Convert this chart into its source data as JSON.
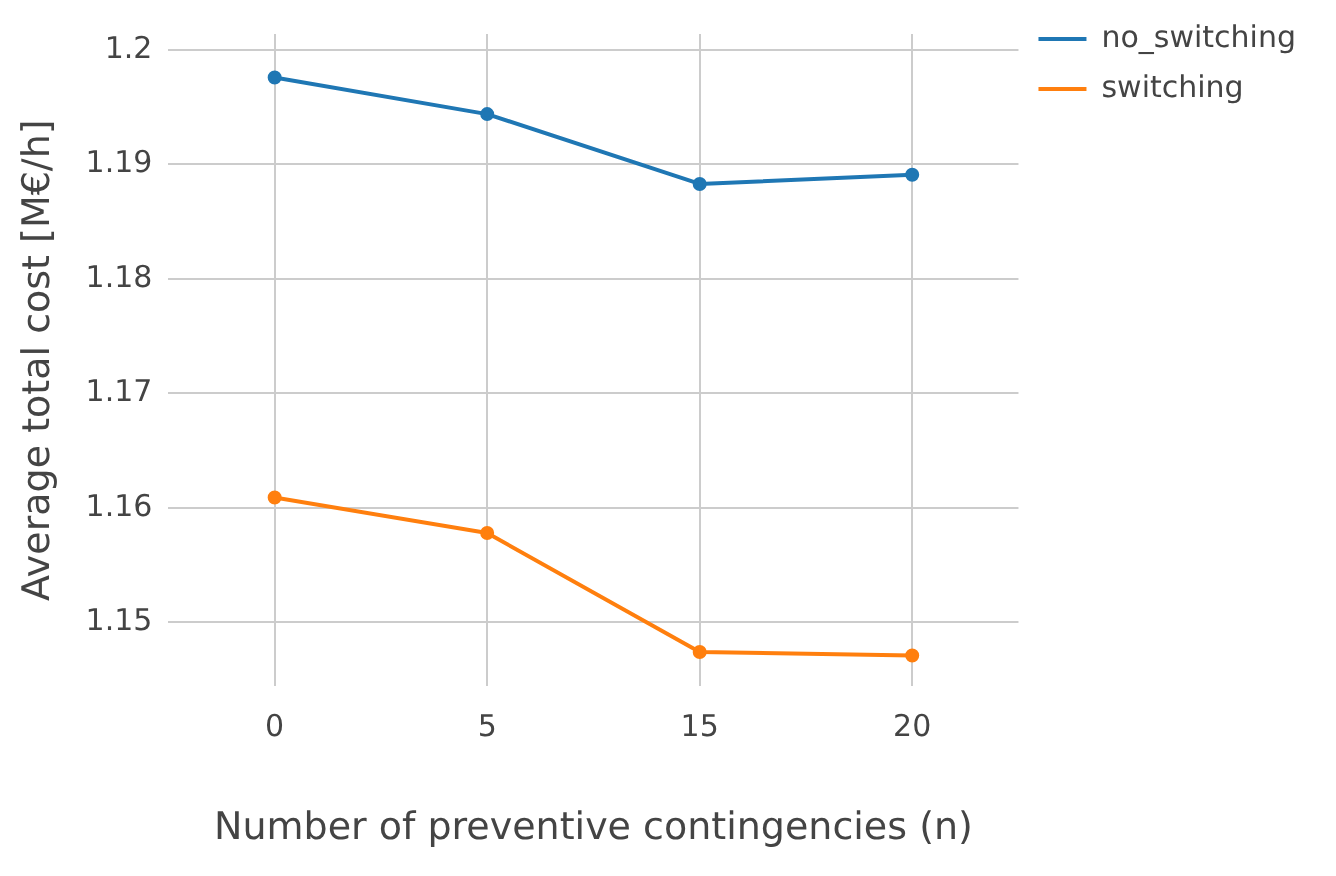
{
  "chart_data": {
    "type": "line",
    "xlabel": "Number of preventive contingencies (n)",
    "ylabel": "Average total cost [M€/h]",
    "categories": [
      "0",
      "5",
      "15",
      "20"
    ],
    "series": [
      {
        "name": "no_switching",
        "color": "#1f77b4",
        "values": [
          1.1976,
          1.1944,
          1.1883,
          1.1891
        ]
      },
      {
        "name": "switching",
        "color": "#ff7f0e",
        "values": [
          1.1609,
          1.1578,
          1.1474,
          1.1471
        ]
      }
    ],
    "ylim": [
      1.1444,
      1.2014
    ],
    "yticks": [
      1.15,
      1.16,
      1.17,
      1.18,
      1.19,
      1.2
    ],
    "grid": true,
    "legend": "top right",
    "marker": "circle",
    "line_style": "solid"
  }
}
